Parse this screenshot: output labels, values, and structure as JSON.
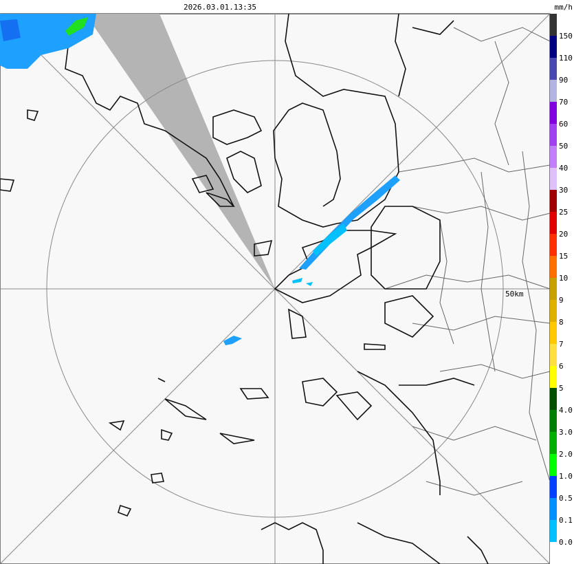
{
  "header": {
    "timestamp": "2026.03.01.13:35"
  },
  "legend": {
    "unit": "mm/h",
    "labels": [
      "150",
      "110",
      "90",
      "70",
      "60",
      "50",
      "40",
      "30",
      "25",
      "20",
      "15",
      "10",
      "9",
      "8",
      "7",
      "6",
      "5",
      "4.0",
      "3.0",
      "2.0",
      "1.0",
      "0.5",
      "0.1",
      "0.0"
    ],
    "colors": [
      "#333333",
      "#000080",
      "#4848b0",
      "#b4b4e0",
      "#8000e0",
      "#a040f0",
      "#c080f8",
      "#e0c0f8",
      "#a00000",
      "#e00000",
      "#ff3000",
      "#ff7000",
      "#c8a000",
      "#e0b000",
      "#ffc800",
      "#ffe040",
      "#ffff00",
      "#005000",
      "#008000",
      "#00b000",
      "#00ff00",
      "#0040ff",
      "#0090ff",
      "#00c0ff",
      "#ffffff"
    ]
  },
  "map": {
    "range_label": "50km"
  }
}
